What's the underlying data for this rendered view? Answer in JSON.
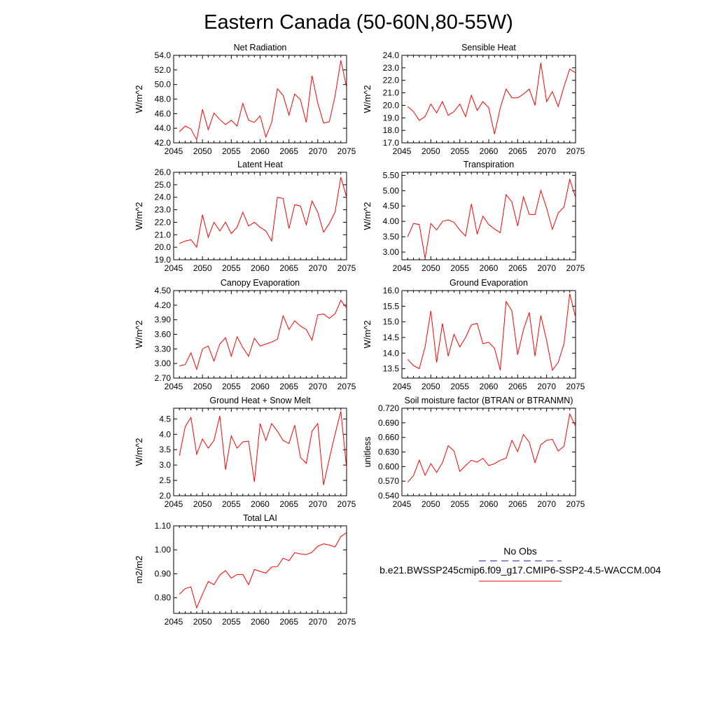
{
  "title": "Eastern Canada (50-60N,80-55W)",
  "legend": {
    "obs_label": "No Obs",
    "obs_color": "#1a1aa0",
    "model_label": "b.e21.BWSSP245cmip6.f09_g17.CMIP6-SSP2-4.5-WACCM.004",
    "model_color": "#ff0000"
  },
  "chart_data": [
    {
      "type": "line",
      "title": "Net Radiation",
      "ylabel": "W/m^2",
      "x": [
        2046,
        2047,
        2048,
        2049,
        2050,
        2051,
        2052,
        2053,
        2054,
        2055,
        2056,
        2057,
        2058,
        2059,
        2060,
        2061,
        2062,
        2063,
        2064,
        2065,
        2066,
        2067,
        2068,
        2069,
        2070,
        2071,
        2072,
        2073,
        2074,
        2075
      ],
      "xlim": [
        2045,
        2075
      ],
      "xticks": [
        2045,
        2050,
        2055,
        2060,
        2065,
        2070,
        2075
      ],
      "ylim": [
        42.0,
        54.0
      ],
      "yticks": [
        "42.0",
        "44.0",
        "46.0",
        "48.0",
        "50.0",
        "52.0",
        "54.0"
      ],
      "series": [
        {
          "color": "#ff0000",
          "values": [
            43.5,
            44.3,
            43.9,
            42.4,
            46.6,
            43.8,
            46.1,
            45.2,
            44.5,
            45.1,
            44.3,
            47.4,
            45.1,
            44.8,
            45.7,
            42.8,
            44.8,
            49.4,
            48.5,
            45.8,
            48.7,
            47.9,
            44.8,
            51.2,
            47.5,
            44.7,
            44.9,
            48.4,
            53.3,
            49.6
          ]
        }
      ]
    },
    {
      "type": "line",
      "title": "Sensible Heat",
      "ylabel": "W/m^2",
      "x": [
        2046,
        2047,
        2048,
        2049,
        2050,
        2051,
        2052,
        2053,
        2054,
        2055,
        2056,
        2057,
        2058,
        2059,
        2060,
        2061,
        2062,
        2063,
        2064,
        2065,
        2066,
        2067,
        2068,
        2069,
        2070,
        2071,
        2072,
        2073,
        2074,
        2075
      ],
      "xlim": [
        2045,
        2075
      ],
      "xticks": [
        2045,
        2050,
        2055,
        2060,
        2065,
        2070,
        2075
      ],
      "ylim": [
        17.0,
        24.0
      ],
      "yticks": [
        "17.0",
        "18.0",
        "19.0",
        "20.0",
        "21.0",
        "22.0",
        "23.0",
        "24.0"
      ],
      "series": [
        {
          "color": "#ff0000",
          "values": [
            19.9,
            19.5,
            18.8,
            19.1,
            20.1,
            19.4,
            20.3,
            19.2,
            19.5,
            20.1,
            19.1,
            20.8,
            19.6,
            20.3,
            19.8,
            17.7,
            19.8,
            21.3,
            20.6,
            20.6,
            20.9,
            21.3,
            20.0,
            23.4,
            20.3,
            21.1,
            19.9,
            21.5,
            22.9,
            22.6
          ]
        }
      ]
    },
    {
      "type": "line",
      "title": "Latent Heat",
      "ylabel": "W/m^2",
      "x": [
        2046,
        2047,
        2048,
        2049,
        2050,
        2051,
        2052,
        2053,
        2054,
        2055,
        2056,
        2057,
        2058,
        2059,
        2060,
        2061,
        2062,
        2063,
        2064,
        2065,
        2066,
        2067,
        2068,
        2069,
        2070,
        2071,
        2072,
        2073,
        2074,
        2075
      ],
      "xlim": [
        2045,
        2075
      ],
      "xticks": [
        2045,
        2050,
        2055,
        2060,
        2065,
        2070,
        2075
      ],
      "ylim": [
        19.0,
        26.0
      ],
      "yticks": [
        "19.0",
        "20.0",
        "21.0",
        "22.0",
        "23.0",
        "24.0",
        "25.0",
        "26.0"
      ],
      "series": [
        {
          "color": "#ff0000",
          "values": [
            20.3,
            20.5,
            20.6,
            20.0,
            22.6,
            20.8,
            22.0,
            21.3,
            22.0,
            21.1,
            21.6,
            22.8,
            21.7,
            22.0,
            21.6,
            21.3,
            20.5,
            24.0,
            23.9,
            21.5,
            23.4,
            23.3,
            21.8,
            23.7,
            22.8,
            21.2,
            21.9,
            22.8,
            25.6,
            24.0
          ]
        }
      ]
    },
    {
      "type": "line",
      "title": "Transpiration",
      "ylabel": "W/m^2",
      "x": [
        2046,
        2047,
        2048,
        2049,
        2050,
        2051,
        2052,
        2053,
        2054,
        2055,
        2056,
        2057,
        2058,
        2059,
        2060,
        2061,
        2062,
        2063,
        2064,
        2065,
        2066,
        2067,
        2068,
        2069,
        2070,
        2071,
        2072,
        2073,
        2074,
        2075
      ],
      "xlim": [
        2045,
        2075
      ],
      "xticks": [
        2045,
        2050,
        2055,
        2060,
        2065,
        2070,
        2075
      ],
      "ylim": [
        2.75,
        5.6
      ],
      "yticks": [
        "3.00",
        "3.50",
        "4.00",
        "4.50",
        "5.00",
        "5.50"
      ],
      "series": [
        {
          "color": "#ff0000",
          "values": [
            3.5,
            3.93,
            3.9,
            2.8,
            3.93,
            3.72,
            4.0,
            4.05,
            3.97,
            3.72,
            3.52,
            4.57,
            3.58,
            4.17,
            3.9,
            3.75,
            3.63,
            4.87,
            4.63,
            3.85,
            4.8,
            4.23,
            4.22,
            5.01,
            4.43,
            3.74,
            4.27,
            4.47,
            5.37,
            4.78
          ]
        }
      ]
    },
    {
      "type": "line",
      "title": "Canopy Evaporation",
      "ylabel": "W/m^2",
      "x": [
        2046,
        2047,
        2048,
        2049,
        2050,
        2051,
        2052,
        2053,
        2054,
        2055,
        2056,
        2057,
        2058,
        2059,
        2060,
        2061,
        2062,
        2063,
        2064,
        2065,
        2066,
        2067,
        2068,
        2069,
        2070,
        2071,
        2072,
        2073,
        2074,
        2075
      ],
      "xlim": [
        2045,
        2075
      ],
      "xticks": [
        2045,
        2050,
        2055,
        2060,
        2065,
        2070,
        2075
      ],
      "ylim": [
        2.7,
        4.5
      ],
      "yticks": [
        "2.70",
        "3.00",
        "3.30",
        "3.60",
        "3.90",
        "4.20",
        "4.50"
      ],
      "series": [
        {
          "color": "#ff0000",
          "values": [
            2.95,
            2.98,
            3.22,
            2.88,
            3.3,
            3.36,
            3.05,
            3.4,
            3.53,
            3.15,
            3.55,
            3.33,
            3.15,
            3.52,
            3.36,
            3.4,
            3.44,
            3.5,
            3.98,
            3.7,
            3.88,
            3.77,
            3.7,
            3.48,
            4.0,
            4.02,
            3.93,
            4.02,
            4.3,
            4.14
          ]
        }
      ]
    },
    {
      "type": "line",
      "title": "Ground Evaporation",
      "ylabel": "W/m^2",
      "x": [
        2046,
        2047,
        2048,
        2049,
        2050,
        2051,
        2052,
        2053,
        2054,
        2055,
        2056,
        2057,
        2058,
        2059,
        2060,
        2061,
        2062,
        2063,
        2064,
        2065,
        2066,
        2067,
        2068,
        2069,
        2070,
        2071,
        2072,
        2073,
        2074,
        2075
      ],
      "xlim": [
        2045,
        2075
      ],
      "xticks": [
        2045,
        2050,
        2055,
        2060,
        2065,
        2070,
        2075
      ],
      "ylim": [
        13.2,
        16.0
      ],
      "yticks": [
        "13.5",
        "14.0",
        "14.5",
        "15.0",
        "15.5",
        "16.0"
      ],
      "series": [
        {
          "color": "#ff0000",
          "values": [
            13.8,
            13.6,
            13.5,
            14.2,
            15.35,
            13.7,
            14.95,
            13.9,
            14.6,
            14.2,
            14.5,
            14.9,
            14.95,
            14.3,
            14.35,
            14.15,
            13.45,
            15.65,
            15.35,
            13.95,
            14.75,
            15.3,
            13.9,
            15.2,
            14.4,
            13.45,
            13.7,
            14.3,
            15.9,
            15.15
          ]
        }
      ]
    },
    {
      "type": "line",
      "title": "Ground Heat + Snow Melt",
      "ylabel": "W/m^2",
      "x": [
        2046,
        2047,
        2048,
        2049,
        2050,
        2051,
        2052,
        2053,
        2054,
        2055,
        2056,
        2057,
        2058,
        2059,
        2060,
        2061,
        2062,
        2063,
        2064,
        2065,
        2066,
        2067,
        2068,
        2069,
        2070,
        2071,
        2072,
        2073,
        2074,
        2075
      ],
      "xlim": [
        2045,
        2075
      ],
      "xticks": [
        2045,
        2050,
        2055,
        2060,
        2065,
        2070,
        2075
      ],
      "ylim": [
        2.0,
        4.85
      ],
      "yticks": [
        "2.0",
        "2.5",
        "3.0",
        "3.5",
        "4.0",
        "4.5"
      ],
      "series": [
        {
          "color": "#ff0000",
          "values": [
            3.3,
            4.25,
            4.55,
            3.35,
            3.85,
            3.55,
            3.8,
            4.6,
            2.85,
            3.95,
            3.55,
            3.75,
            3.78,
            2.45,
            4.35,
            3.8,
            4.35,
            4.1,
            3.8,
            3.7,
            4.3,
            3.25,
            3.05,
            4.1,
            4.35,
            2.35,
            3.2,
            4.0,
            4.75,
            2.9
          ]
        }
      ]
    },
    {
      "type": "line",
      "title": "Soil moisture factor (BTRAN or BTRANMN)",
      "ylabel": "unitless",
      "x": [
        2046,
        2047,
        2048,
        2049,
        2050,
        2051,
        2052,
        2053,
        2054,
        2055,
        2056,
        2057,
        2058,
        2059,
        2060,
        2061,
        2062,
        2063,
        2064,
        2065,
        2066,
        2067,
        2068,
        2069,
        2070,
        2071,
        2072,
        2073,
        2074,
        2075
      ],
      "xlim": [
        2045,
        2075
      ],
      "xticks": [
        2045,
        2050,
        2055,
        2060,
        2065,
        2070,
        2075
      ],
      "ylim": [
        0.54,
        0.72
      ],
      "yticks": [
        "0.540",
        "0.570",
        "0.600",
        "0.630",
        "0.660",
        "0.690",
        "0.720"
      ],
      "series": [
        {
          "color": "#ff0000",
          "values": [
            0.568,
            0.581,
            0.613,
            0.582,
            0.606,
            0.588,
            0.608,
            0.643,
            0.632,
            0.59,
            0.602,
            0.613,
            0.609,
            0.617,
            0.602,
            0.606,
            0.613,
            0.617,
            0.654,
            0.631,
            0.666,
            0.65,
            0.608,
            0.645,
            0.654,
            0.656,
            0.632,
            0.642,
            0.708,
            0.683
          ]
        }
      ]
    },
    {
      "type": "line",
      "title": "Total LAI",
      "ylabel": "m2/m2",
      "x": [
        2046,
        2047,
        2048,
        2049,
        2050,
        2051,
        2052,
        2053,
        2054,
        2055,
        2056,
        2057,
        2058,
        2059,
        2060,
        2061,
        2062,
        2063,
        2064,
        2065,
        2066,
        2067,
        2068,
        2069,
        2070,
        2071,
        2072,
        2073,
        2074,
        2075
      ],
      "xlim": [
        2045,
        2075
      ],
      "xticks": [
        2045,
        2050,
        2055,
        2060,
        2065,
        2070,
        2075
      ],
      "ylim": [
        0.735,
        1.1
      ],
      "yticks": [
        "0.80",
        "0.90",
        "1.00",
        "1.10"
      ],
      "series": [
        {
          "color": "#ff0000",
          "values": [
            0.815,
            0.838,
            0.845,
            0.758,
            0.815,
            0.868,
            0.855,
            0.895,
            0.913,
            0.882,
            0.897,
            0.897,
            0.855,
            0.918,
            0.91,
            0.903,
            0.928,
            0.93,
            0.965,
            0.955,
            0.988,
            0.983,
            0.98,
            0.99,
            1.015,
            1.025,
            1.02,
            1.012,
            1.055,
            1.072
          ]
        }
      ]
    }
  ]
}
